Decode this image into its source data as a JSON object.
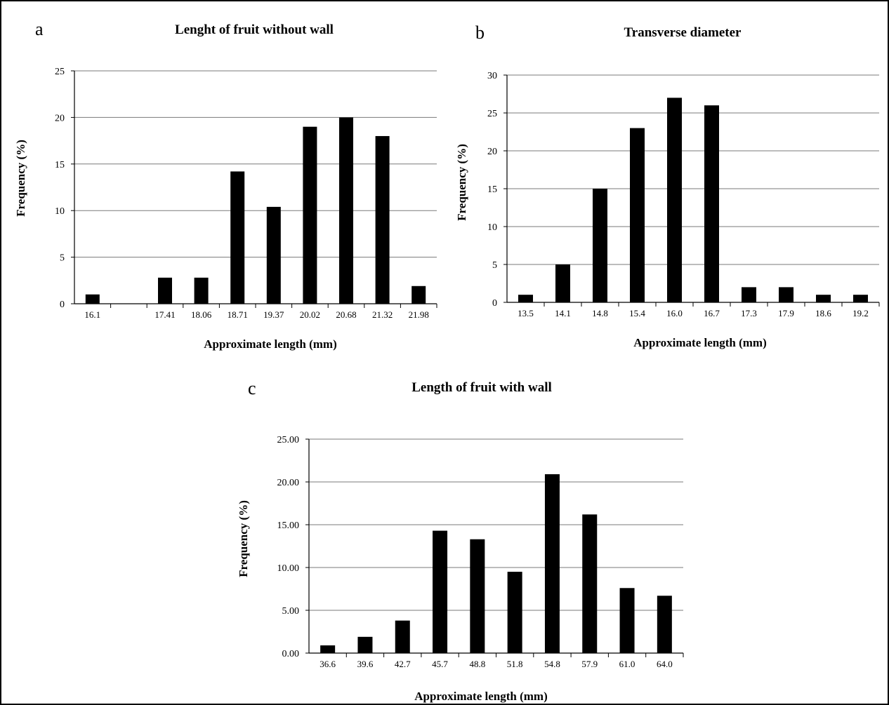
{
  "chart_data": [
    {
      "panel_letter": "a",
      "type": "bar",
      "title": "Lenght of fruit without wall",
      "xlabel": "Approximate length (mm)",
      "ylabel": "Frequency (%)",
      "categories": [
        "16.1",
        "",
        "17.41",
        "18.06",
        "18.71",
        "19.37",
        "20.02",
        "20.68",
        "21.32",
        "21.98"
      ],
      "values": [
        1,
        0,
        2.8,
        2.8,
        14.2,
        10.4,
        19,
        20,
        18,
        1.9
      ],
      "ylim": [
        0,
        25
      ],
      "yticks": [
        "0",
        "5",
        "10",
        "15",
        "20",
        "25"
      ],
      "grid": true
    },
    {
      "panel_letter": "b",
      "type": "bar",
      "title": "Transverse  diameter",
      "xlabel": "Approximate length (mm)",
      "ylabel": "Frequency (%)",
      "categories": [
        "13.5",
        "14.1",
        "14.8",
        "15.4",
        "16.0",
        "16.7",
        "17.3",
        "17.9",
        "18.6",
        "19.2"
      ],
      "values": [
        1,
        5,
        15,
        23,
        27,
        26,
        2,
        2,
        1,
        1
      ],
      "ylim": [
        0,
        30
      ],
      "yticks": [
        "0",
        "5",
        "10",
        "15",
        "20",
        "25",
        "30"
      ],
      "grid": true
    },
    {
      "panel_letter": "c",
      "type": "bar",
      "title": "Length of fruit with wall",
      "xlabel": "Approximate length (mm)",
      "ylabel": "Frequency (%)",
      "categories": [
        "36.6",
        "39.6",
        "42.7",
        "45.7",
        "48.8",
        "51.8",
        "54.8",
        "57.9",
        "61.0",
        "64.0"
      ],
      "values": [
        0.9,
        1.9,
        3.8,
        14.3,
        13.3,
        9.5,
        20.9,
        16.2,
        7.6,
        6.7
      ],
      "ylim": [
        0,
        25
      ],
      "yticks": [
        "0.00",
        "5.00",
        "10.00",
        "15.00",
        "20.00",
        "25.00"
      ],
      "grid": true
    }
  ]
}
